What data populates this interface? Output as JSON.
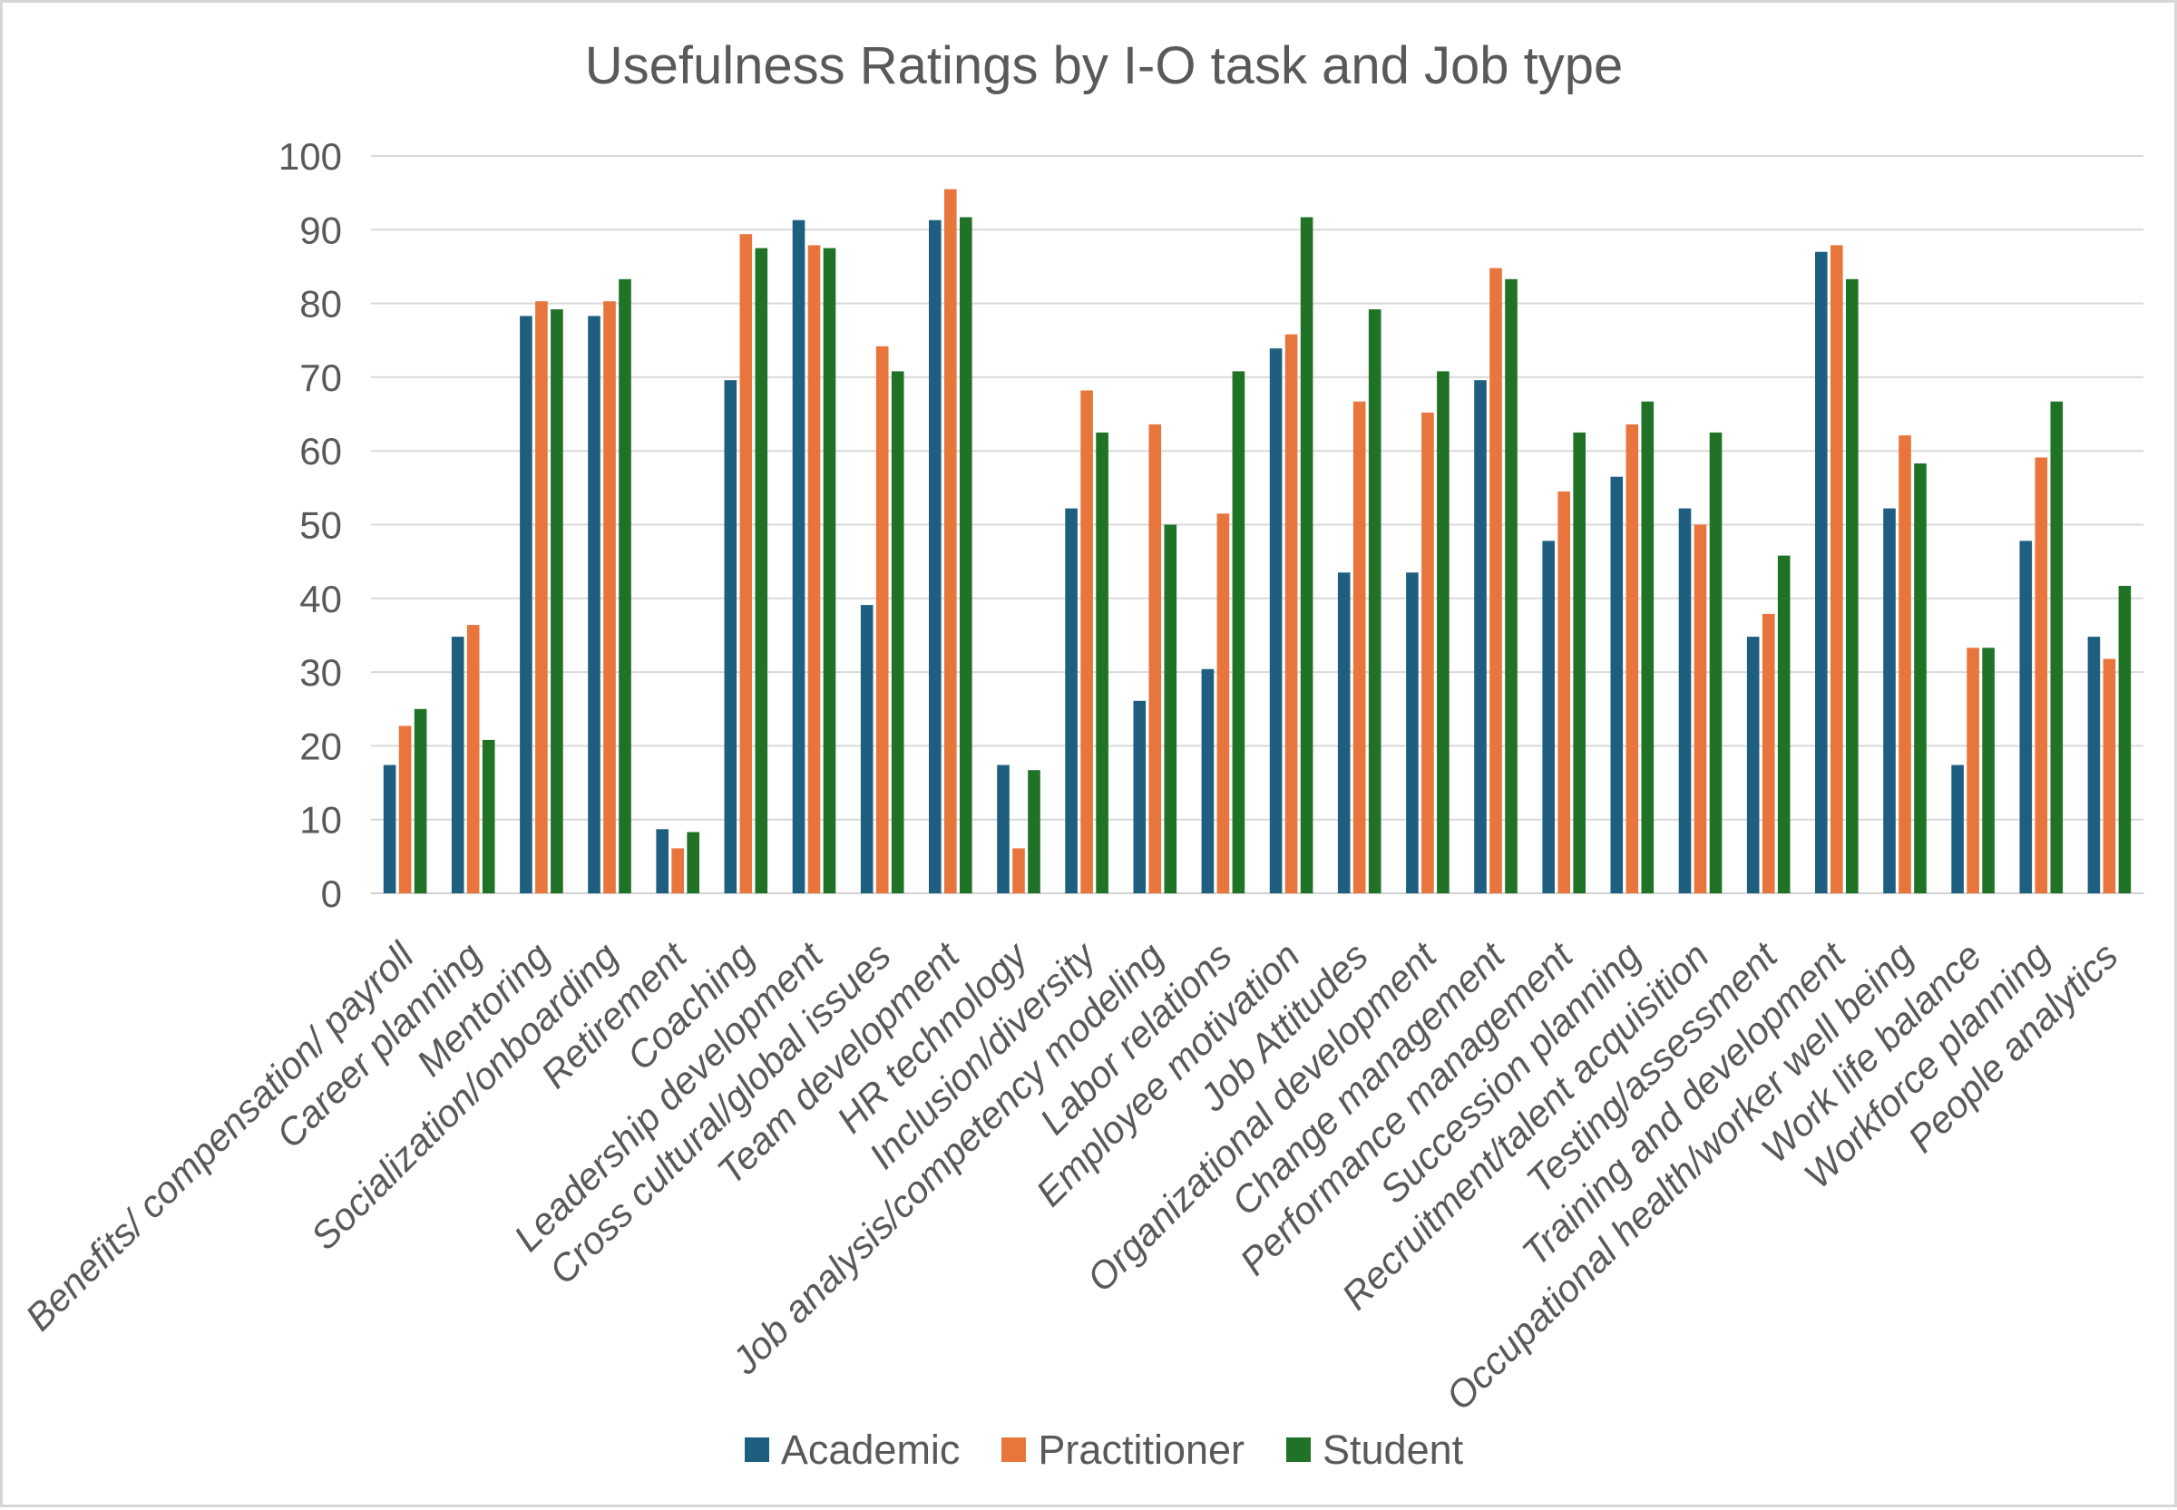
{
  "chart_data": {
    "type": "bar",
    "title": "Usefulness Ratings by I-O task and Job type",
    "xlabel": "",
    "ylabel": "",
    "ylim": [
      0,
      100
    ],
    "ytick_step": 10,
    "yticks": [
      0,
      10,
      20,
      30,
      40,
      50,
      60,
      70,
      80,
      90,
      100
    ],
    "grid": true,
    "legend_position": "bottom",
    "categories": [
      "Benefits/ compensation/ payroll",
      "Career planning",
      "Mentoring",
      "Socialization/onboarding",
      "Retirement",
      "Coaching",
      "Leadership development",
      "Cross cultural/global issues",
      "Team development",
      "HR technology",
      "Inclusion/diversity",
      "Job analysis/competency modeling",
      "Labor relations",
      "Employee motivation",
      "Job Attitudes",
      "Organizational development",
      "Change management",
      "Performance management",
      "Succession planning",
      "Recruitment/talent acquisition",
      "Testing/assessment",
      "Training and development",
      "Occupational health/worker well being",
      "Work life balance",
      "Workforce planning",
      "People analytics"
    ],
    "series": [
      {
        "name": "Academic",
        "color": "#1E5F80",
        "values": [
          17.4,
          34.8,
          78.3,
          78.3,
          8.7,
          69.6,
          91.3,
          39.1,
          91.3,
          17.4,
          52.2,
          26.1,
          30.4,
          73.9,
          43.5,
          43.5,
          69.6,
          47.8,
          56.5,
          52.2,
          34.8,
          87.0,
          52.2,
          17.4,
          47.8,
          34.8
        ]
      },
      {
        "name": "Practitioner",
        "color": "#E8753C",
        "values": [
          22.7,
          36.4,
          80.3,
          80.3,
          6.1,
          89.4,
          87.9,
          74.2,
          95.5,
          6.1,
          68.2,
          63.6,
          51.5,
          75.8,
          66.7,
          65.2,
          84.8,
          54.5,
          63.6,
          50.0,
          37.9,
          87.9,
          62.1,
          33.3,
          59.1,
          31.8
        ]
      },
      {
        "name": "Student",
        "color": "#1F7226",
        "values": [
          25.0,
          20.8,
          79.2,
          83.3,
          8.3,
          87.5,
          87.5,
          70.8,
          91.7,
          16.7,
          62.5,
          50.0,
          70.8,
          91.7,
          79.2,
          70.8,
          83.3,
          62.5,
          66.7,
          62.5,
          45.8,
          83.3,
          58.3,
          33.3,
          66.7,
          41.7
        ]
      }
    ]
  },
  "style": {
    "text_color": "#595959",
    "gridline_color": "#d9d9d9",
    "axis_line_color": "#d2d2d2",
    "border_color": "#d7d7d7",
    "background": "#ffffff"
  }
}
